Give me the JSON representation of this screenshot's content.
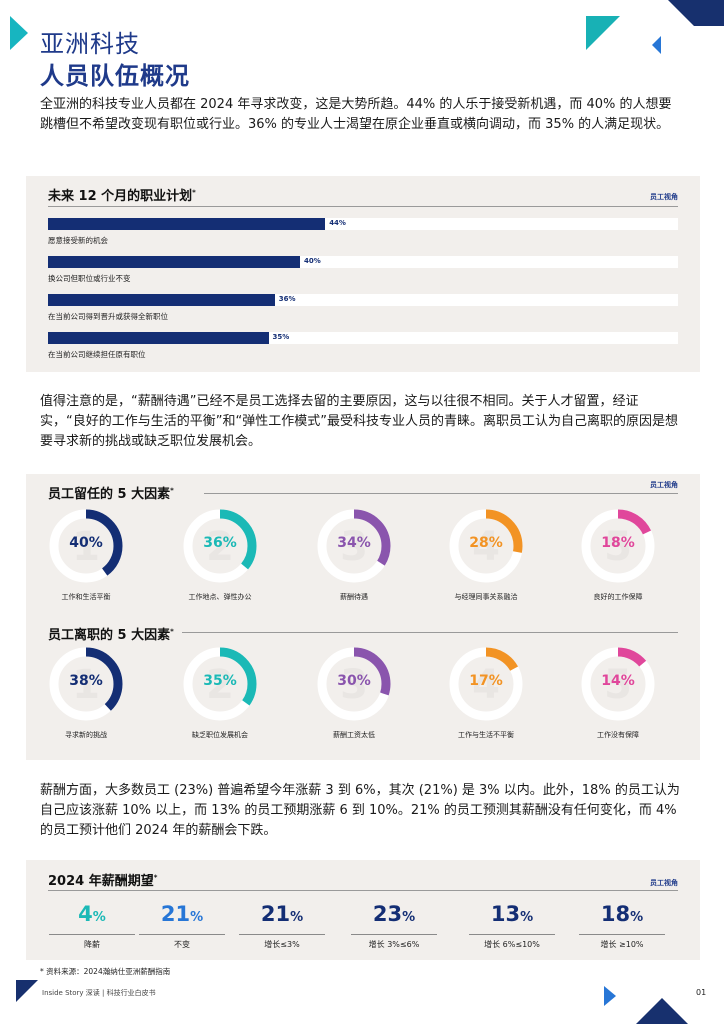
{
  "header": {
    "title_line1": "亚洲科技",
    "title_line2": "人员队伍概况"
  },
  "intro_paragraph": "全亚洲的科技专业人员都在 2024 年寻求改变，这是大势所趋。44% 的人乐于接受新机遇，而 40% 的人想要跳槽但不希望改变现有职位或行业。36% 的专业人士渴望在原企业垂直或横向调动，而 35% 的人满足现状。",
  "career_plan": {
    "title": "未来 12 个月的职业计划",
    "title_mark": "*",
    "tag": "员工视角",
    "bar_color": "#142e74",
    "items": [
      {
        "label": "愿意接受新的机会",
        "value_text": "44%"
      },
      {
        "label": "换公司但职位或行业不变",
        "value_text": "40%"
      },
      {
        "label": "在当前公司得到晋升或获得全新职位",
        "value_text": "36%"
      },
      {
        "label": "在当前公司继续担任原有职位",
        "value_text": "35%"
      }
    ]
  },
  "chart_data": {
    "type": "bar",
    "title": "未来 12 个月的职业计划",
    "categories": [
      "愿意接受新的机会",
      "换公司但职位或行业不变",
      "在当前公司得到晋升或获得全新职位",
      "在当前公司继续担任原有职位"
    ],
    "values": [
      44,
      40,
      36,
      35
    ],
    "ylim": [
      0,
      100
    ]
  },
  "middle_paragraph": "值得注意的是，“薪酬待遇”已经不是员工选择去留的主要原因，这与以往很不相同。关于人才留置，经证实，“良好的工作与生活的平衡”和“弹性工作模式”最受科技专业人员的青睐。离职员工认为自己离职的原因是想要寻求新的挑战或缺乏职位发展机会。",
  "retention": {
    "title": "员工留任的 5 大因素",
    "title_mark": "*",
    "tag": "员工视角",
    "items": [
      {
        "rank": "1",
        "value": 40,
        "value_text": "40%",
        "label": "工作和生活平衡",
        "color": "#142e74"
      },
      {
        "rank": "2",
        "value": 36,
        "value_text": "36%",
        "label": "工作地点、弹性办公",
        "color": "#1bb9b6"
      },
      {
        "rank": "3",
        "value": 34,
        "value_text": "34%",
        "label": "薪酬待遇",
        "color": "#8a55ad"
      },
      {
        "rank": "4",
        "value": 28,
        "value_text": "28%",
        "label": "与经理同事关系融洽",
        "color": "#f29324"
      },
      {
        "rank": "5",
        "value": 18,
        "value_text": "18%",
        "label": "良好的工作保障",
        "color": "#e0479b"
      }
    ]
  },
  "leaving": {
    "title": "员工离职的 5 大因素",
    "title_mark": "*",
    "items": [
      {
        "rank": "1",
        "value": 38,
        "value_text": "38%",
        "label": "寻求新的挑战",
        "color": "#142e74"
      },
      {
        "rank": "2",
        "value": 35,
        "value_text": "35%",
        "label": "缺乏职位发展机会",
        "color": "#1bb9b6"
      },
      {
        "rank": "3",
        "value": 30,
        "value_text": "30%",
        "label": "薪酬工资太低",
        "color": "#8a55ad"
      },
      {
        "rank": "4",
        "value": 17,
        "value_text": "17%",
        "label": "工作与生活不平衡",
        "color": "#f29324"
      },
      {
        "rank": "5",
        "value": 14,
        "value_text": "14%",
        "label": "工作没有保障",
        "color": "#e0479b"
      }
    ]
  },
  "salary_paragraph": "薪酬方面，大多数员工 (23%) 普遍希望今年涨薪 3 到 6%，其次 (21%) 是 3% 以内。此外，18% 的员工认为自己应该涨薪 10% 以上，而 13% 的员工预期涨薪 6 到 10%。21% 的员工预测其薪酬没有任何变化，而 4% 的员工预计他们 2024 年的薪酬会下跌。",
  "salary": {
    "title": "2024 年薪酬期望",
    "title_mark": "*",
    "tag": "员工视角",
    "items": [
      {
        "num": "4",
        "pct": "%",
        "label": "降薪",
        "color": "#1bb9b6"
      },
      {
        "num": "21",
        "pct": "%",
        "label": "不变",
        "color": "#2776d6"
      },
      {
        "num": "21",
        "pct": "%",
        "label": "增长≤3%",
        "color": "#142e74"
      },
      {
        "num": "23",
        "pct": "%",
        "label": "增长 3%≤6%",
        "color": "#142e74"
      },
      {
        "num": "13",
        "pct": "%",
        "label": "增长 6%≤10%",
        "color": "#142e74"
      },
      {
        "num": "18",
        "pct": "%",
        "label": "增长 ≥10%",
        "color": "#142e74"
      }
    ]
  },
  "footnote": "* 资料来源：2024瀚纳仕亚洲薪酬指南",
  "footer": "Inside Story 深读 | 科技行业白皮书",
  "page_number": "01"
}
